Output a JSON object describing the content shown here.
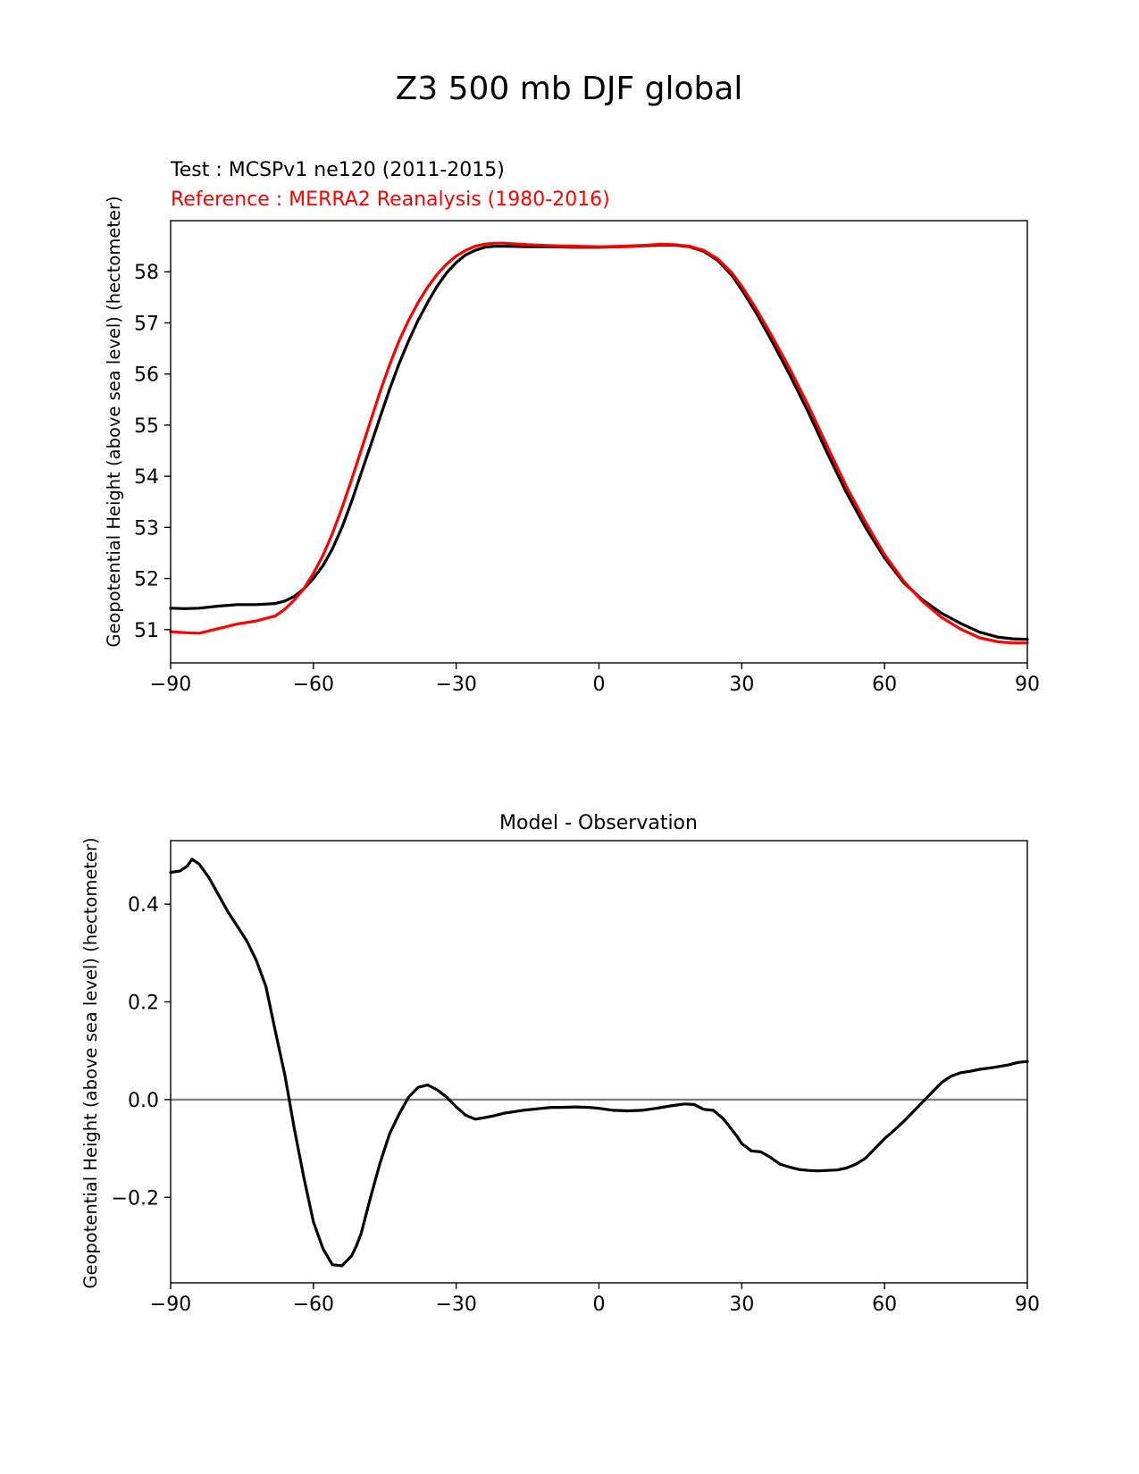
{
  "figure_title": "Z3 500 mb DJF global",
  "colors": {
    "test": "#000000",
    "reference": "#ff0000",
    "zero_line": "#808080"
  },
  "chart_data": [
    {
      "type": "line",
      "test_label": "Test : MCSPv1 ne120 (2011-2015)",
      "reference_label": "Reference : MERRA2 Reanalysis (1980-2016)",
      "xlabel": "",
      "ylabel": "Geopotential Height (above sea level) (hectometer)",
      "xlim": [
        -90,
        90
      ],
      "ylim": [
        50.35,
        59.0
      ],
      "xticks": [
        -90,
        -60,
        -30,
        0,
        30,
        60,
        90
      ],
      "xtick_labels": [
        "−90",
        "−60",
        "−30",
        "0",
        "30",
        "60",
        "90"
      ],
      "yticks": [
        51,
        52,
        53,
        54,
        55,
        56,
        57,
        58
      ],
      "ytick_labels": [
        "51",
        "52",
        "53",
        "54",
        "55",
        "56",
        "57",
        "58"
      ],
      "series": [
        {
          "name": "test",
          "x": [
            -90,
            -87,
            -84,
            -80,
            -76,
            -72,
            -68,
            -66,
            -64,
            -62,
            -60,
            -58,
            -56,
            -54,
            -52,
            -50,
            -48,
            -46,
            -44,
            -42,
            -40,
            -38,
            -36,
            -34,
            -32,
            -30,
            -28,
            -26,
            -24,
            -22,
            -20,
            -15,
            -10,
            -5,
            0,
            5,
            10,
            13,
            16,
            19,
            22,
            25,
            28,
            30,
            33,
            36,
            40,
            44,
            48,
            52,
            56,
            60,
            64,
            68,
            72,
            76,
            80,
            84,
            87,
            90
          ],
          "values": [
            51.42,
            51.41,
            51.42,
            51.46,
            51.49,
            51.49,
            51.51,
            51.56,
            51.65,
            51.8,
            52.0,
            52.25,
            52.58,
            53.0,
            53.5,
            54.05,
            54.6,
            55.15,
            55.7,
            56.2,
            56.65,
            57.05,
            57.4,
            57.72,
            57.98,
            58.18,
            58.33,
            58.42,
            58.48,
            58.5,
            58.5,
            58.49,
            58.49,
            58.48,
            58.48,
            58.49,
            58.51,
            58.52,
            58.52,
            58.49,
            58.4,
            58.22,
            57.92,
            57.65,
            57.2,
            56.7,
            56.0,
            55.25,
            54.45,
            53.68,
            53.0,
            52.4,
            51.92,
            51.58,
            51.32,
            51.12,
            50.95,
            50.85,
            50.82,
            50.81
          ]
        },
        {
          "name": "reference",
          "x": [
            -90,
            -87,
            -84,
            -80,
            -76,
            -72,
            -68,
            -66,
            -64,
            -62,
            -60,
            -58,
            -56,
            -54,
            -52,
            -50,
            -48,
            -46,
            -44,
            -42,
            -40,
            -38,
            -36,
            -34,
            -32,
            -30,
            -28,
            -26,
            -24,
            -22,
            -20,
            -15,
            -10,
            -5,
            0,
            5,
            10,
            13,
            16,
            19,
            22,
            25,
            28,
            30,
            33,
            36,
            40,
            44,
            48,
            52,
            56,
            60,
            64,
            68,
            72,
            76,
            80,
            84,
            87,
            90
          ],
          "values": [
            50.96,
            50.94,
            50.93,
            51.02,
            51.11,
            51.17,
            51.27,
            51.4,
            51.58,
            51.8,
            52.1,
            52.45,
            52.88,
            53.38,
            53.93,
            54.5,
            55.08,
            55.65,
            56.18,
            56.65,
            57.05,
            57.4,
            57.7,
            57.95,
            58.15,
            58.31,
            58.42,
            58.5,
            58.54,
            58.56,
            58.56,
            58.53,
            58.51,
            58.5,
            58.49,
            58.5,
            58.52,
            58.54,
            58.53,
            58.5,
            58.42,
            58.25,
            57.97,
            57.72,
            57.28,
            56.8,
            56.12,
            55.38,
            54.58,
            53.8,
            53.1,
            52.47,
            51.95,
            51.55,
            51.24,
            51.01,
            50.84,
            50.76,
            50.74,
            50.74
          ]
        }
      ]
    },
    {
      "type": "line",
      "title": "Model - Observation",
      "xlabel": "",
      "ylabel": "Geopotential Height (above sea level) (hectometer)",
      "xlim": [
        -90,
        90
      ],
      "ylim": [
        -0.375,
        0.53
      ],
      "xticks": [
        -90,
        -60,
        -30,
        0,
        30,
        60,
        90
      ],
      "xtick_labels": [
        "−90",
        "−60",
        "−30",
        "0",
        "30",
        "60",
        "90"
      ],
      "yticks": [
        -0.2,
        0.0,
        0.2,
        0.4
      ],
      "ytick_labels": [
        "−0.2",
        "0.0",
        "0.2",
        "0.4"
      ],
      "zero_line": 0,
      "series": [
        {
          "name": "difference",
          "x": [
            -90,
            -88,
            -86.5,
            -85.5,
            -84,
            -82,
            -80,
            -78,
            -76,
            -74,
            -72,
            -70,
            -68,
            -66,
            -64,
            -62,
            -60,
            -58,
            -56,
            -54,
            -52,
            -51,
            -50,
            -48,
            -46,
            -44,
            -42,
            -40,
            -38,
            -36,
            -34,
            -32,
            -30,
            -28,
            -26,
            -24,
            -22,
            -20,
            -18,
            -16,
            -14,
            -12,
            -10,
            -8,
            -5,
            -2,
            0,
            3,
            6,
            9,
            12,
            15,
            18,
            20,
            22,
            24,
            26,
            27,
            28,
            29,
            30,
            32,
            34,
            36,
            37,
            38,
            40,
            42,
            44,
            46,
            48,
            50,
            52,
            54,
            56,
            58,
            60,
            62,
            64,
            66,
            68,
            70,
            72,
            74,
            76,
            78,
            80,
            83,
            86,
            88,
            90
          ],
          "values": [
            0.465,
            0.468,
            0.478,
            0.492,
            0.482,
            0.455,
            0.42,
            0.385,
            0.355,
            0.325,
            0.285,
            0.232,
            0.14,
            0.05,
            -0.06,
            -0.16,
            -0.25,
            -0.305,
            -0.338,
            -0.34,
            -0.32,
            -0.3,
            -0.275,
            -0.2,
            -0.13,
            -0.07,
            -0.03,
            0.005,
            0.025,
            0.03,
            0.02,
            0.005,
            -0.015,
            -0.032,
            -0.04,
            -0.037,
            -0.033,
            -0.028,
            -0.025,
            -0.022,
            -0.02,
            -0.018,
            -0.016,
            -0.016,
            -0.015,
            -0.016,
            -0.018,
            -0.022,
            -0.023,
            -0.022,
            -0.018,
            -0.013,
            -0.009,
            -0.01,
            -0.02,
            -0.022,
            -0.038,
            -0.05,
            -0.063,
            -0.075,
            -0.09,
            -0.105,
            -0.107,
            -0.118,
            -0.125,
            -0.132,
            -0.138,
            -0.143,
            -0.145,
            -0.146,
            -0.145,
            -0.144,
            -0.14,
            -0.132,
            -0.12,
            -0.1,
            -0.08,
            -0.063,
            -0.045,
            -0.025,
            -0.005,
            0.015,
            0.035,
            0.048,
            0.055,
            0.058,
            0.062,
            0.066,
            0.071,
            0.076,
            0.078
          ]
        }
      ]
    }
  ]
}
